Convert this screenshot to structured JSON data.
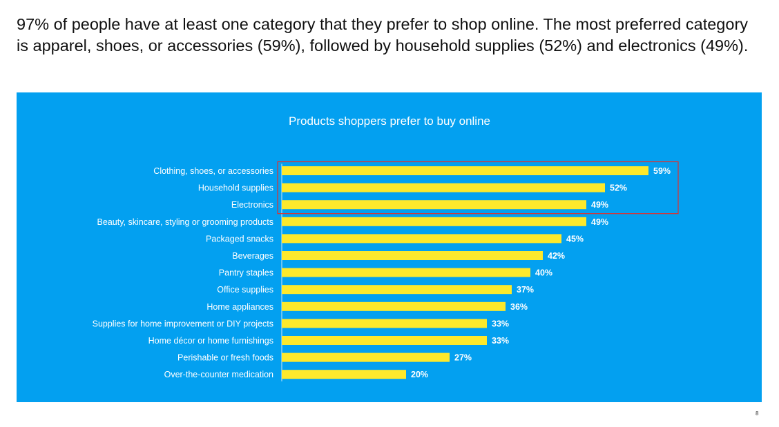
{
  "headline": {
    "line1": "97% of people have at least one category that they prefer to shop online. The most preferred category",
    "line2": "is apparel, shoes, or accessories (59%), followed by household supplies (52%) and electronics (49%)."
  },
  "colors": {
    "panel_bg": "#03a0f0",
    "bar": "#fde92c",
    "text_on_panel": "#ffffff",
    "highlight_box": "#e0302d"
  },
  "chart_data": {
    "type": "bar",
    "orientation": "horizontal",
    "title": "Products shoppers prefer to buy online",
    "xlabel": "",
    "ylabel": "",
    "xlim": [
      0,
      65
    ],
    "unit": "%",
    "grid": false,
    "legend": "none",
    "categories": [
      "Clothing, shoes, or accessories",
      "Household supplies",
      "Electronics",
      "Beauty, skincare, styling or grooming products",
      "Packaged snacks",
      "Beverages",
      "Pantry staples",
      "Office supplies",
      "Home appliances",
      "Supplies for home improvement or DIY projects",
      "Home décor or home furnishings",
      "Perishable or fresh foods",
      "Over-the-counter medication"
    ],
    "values": [
      59,
      52,
      49,
      49,
      45,
      42,
      40,
      37,
      36,
      33,
      33,
      27,
      20
    ],
    "data_labels": [
      "59%",
      "52%",
      "49%",
      "49%",
      "45%",
      "42%",
      "40%",
      "37%",
      "36%",
      "33%",
      "33%",
      "27%",
      "20%"
    ],
    "highlighted_categories": [
      "Clothing, shoes, or accessories",
      "Household supplies",
      "Electronics"
    ]
  },
  "page_number": "8"
}
